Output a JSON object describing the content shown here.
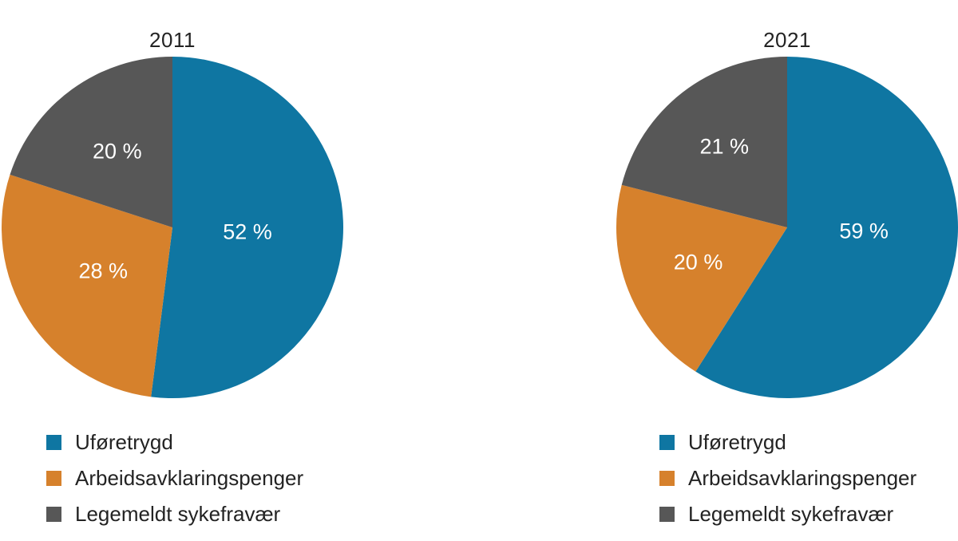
{
  "figure": {
    "background": "#ffffff",
    "text_color": "#232323",
    "data_label_color": "#ffffff"
  },
  "chart_data": [
    {
      "type": "pie",
      "title": "2011",
      "categories": [
        "Uføretrygd",
        "Arbeidsavklaringspenger",
        "Legemeldt sykefravær"
      ],
      "values": [
        52,
        28,
        20
      ],
      "unit": "%",
      "data_labels": [
        "52 %",
        "28 %",
        "20 %"
      ],
      "colors": [
        "#0F76A2",
        "#D6812C",
        "#575757"
      ],
      "start_angle_deg": 0,
      "direction": "clockwise",
      "legend_position": "bottom-left",
      "grid": false,
      "label_hints": [
        {
          "r": 0.44
        },
        {
          "r": 0.48
        },
        {
          "r": 0.55
        }
      ]
    },
    {
      "type": "pie",
      "title": "2021",
      "categories": [
        "Uføretrygd",
        "Arbeidsavklaringspenger",
        "Legemeldt sykefravær"
      ],
      "values": [
        59,
        20,
        21
      ],
      "unit": "%",
      "data_labels": [
        "59 %",
        "20 %",
        "21 %"
      ],
      "colors": [
        "#0F76A2",
        "#D6812C",
        "#575757"
      ],
      "start_angle_deg": 0,
      "direction": "clockwise",
      "legend_position": "bottom-left",
      "grid": false,
      "label_hints": [
        {
          "r": 0.45,
          "angle": 93
        },
        {
          "r": 0.56
        },
        {
          "r": 0.6
        }
      ]
    }
  ]
}
